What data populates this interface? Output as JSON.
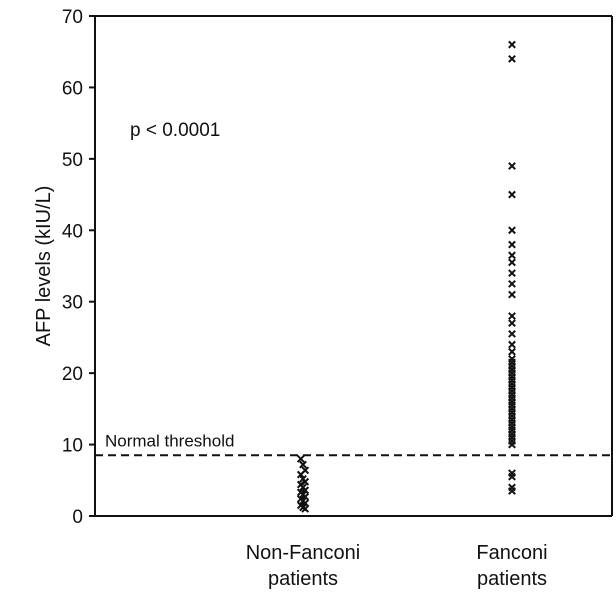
{
  "chart_data": {
    "type": "scatter",
    "ylabel": "AFP levels (kIU/L)",
    "ylim": [
      0,
      70
    ],
    "yticks": [
      0,
      10,
      20,
      30,
      40,
      50,
      60,
      70
    ],
    "categories": [
      "Non-Fanconi patients",
      "Fanconi patients"
    ],
    "category_lines": [
      [
        "Non-Fanconi",
        "patients"
      ],
      [
        "Fanconi",
        "patients"
      ]
    ],
    "marker": "x",
    "color": "#111111",
    "grid": false,
    "threshold": {
      "label": "Normal threshold",
      "value": 8.5
    },
    "annotation": "p < 0.0001",
    "series": [
      {
        "category": "Non-Fanconi patients",
        "values": [
          8.0,
          7.2,
          6.4,
          5.8,
          5.2,
          4.8,
          4.4,
          4.0,
          3.6,
          3.3,
          3.0,
          2.7,
          2.4,
          2.1,
          1.8,
          1.5,
          1.2,
          1.0
        ]
      },
      {
        "category": "Fanconi patients",
        "values": [
          66,
          64,
          49,
          45,
          40,
          38,
          36.5,
          35.5,
          34,
          32.5,
          31,
          28,
          27,
          25.5,
          24,
          23,
          22,
          21.5,
          21,
          20.5,
          20,
          19.5,
          19,
          18.5,
          18,
          17.5,
          17,
          16.5,
          16,
          15.5,
          15,
          14.5,
          14,
          13.5,
          13,
          12.5,
          12,
          11.5,
          11,
          10.5,
          10,
          6,
          5.5,
          4,
          3.5
        ]
      }
    ]
  }
}
